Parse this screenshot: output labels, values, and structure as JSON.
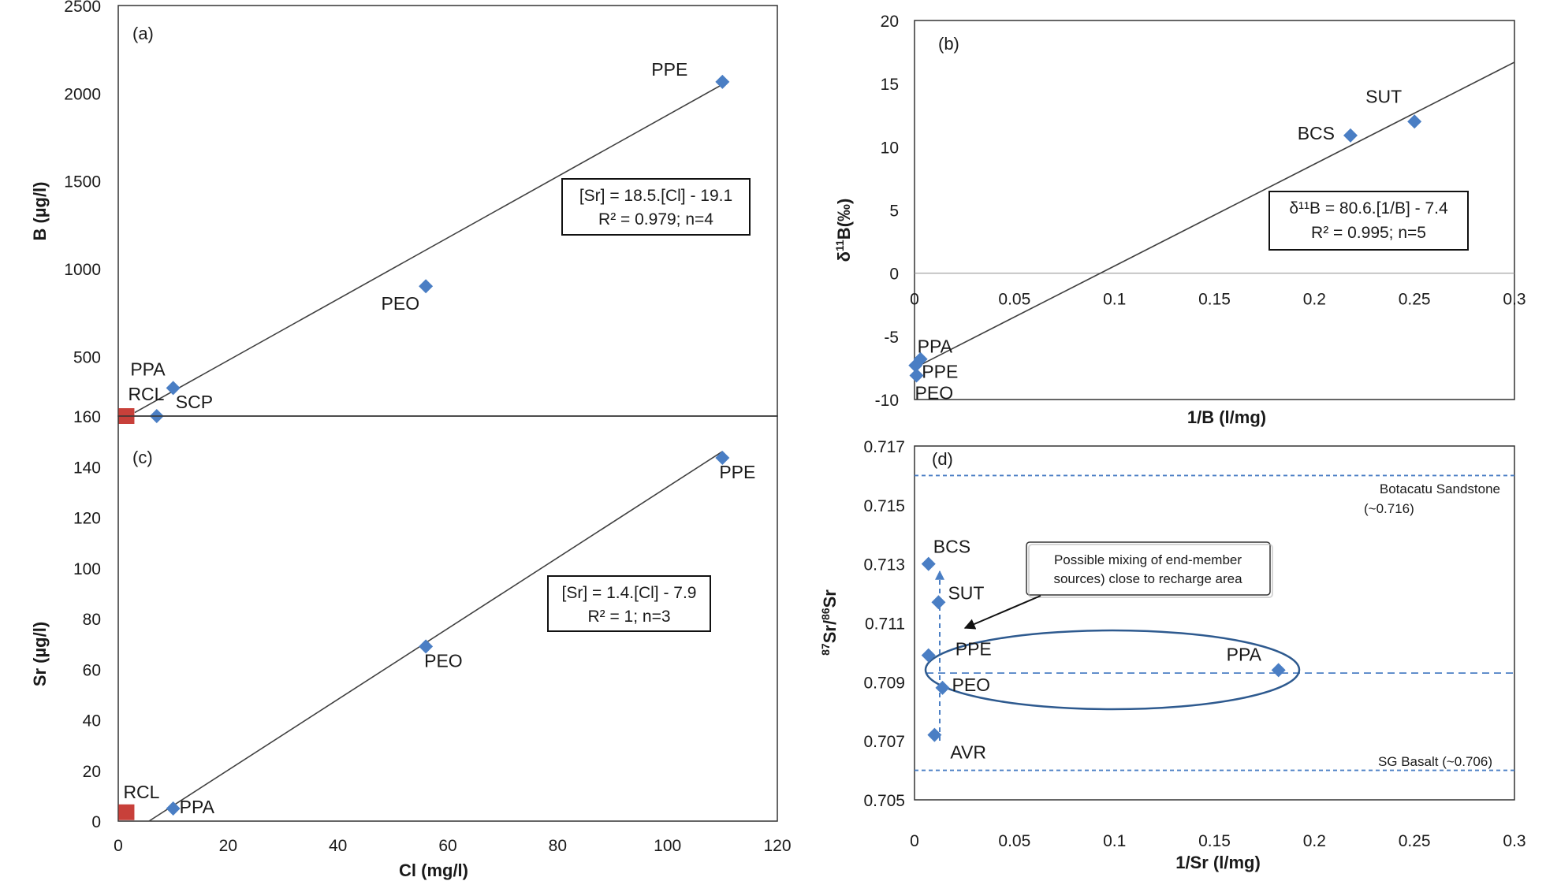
{
  "chart_data": [
    {
      "panel": "(a)",
      "type": "scatter",
      "xlabel": "",
      "ylabel": "B (µg/l)",
      "xlim": [
        0,
        120
      ],
      "ylim": [
        160,
        2500
      ],
      "yticks": [
        "160",
        "500",
        "1000",
        "1500",
        "2000",
        "2500"
      ],
      "points": [
        {
          "label": "PPE",
          "x": 110,
          "y": 2065,
          "marker": "diamond"
        },
        {
          "label": "PEO",
          "x": 56,
          "y": 900,
          "marker": "diamond"
        },
        {
          "label": "PPA",
          "x": 10,
          "y": 320,
          "marker": "diamond"
        },
        {
          "label": "SCP",
          "x": 7,
          "y": 160,
          "marker": "diamond"
        },
        {
          "label": "RCL",
          "x": 1.5,
          "y": 160,
          "marker": "square"
        }
      ],
      "fit_line": {
        "x": [
          3,
          110
        ],
        "y": [
          180,
          2050
        ]
      },
      "equation": [
        "[Sr] = 18.5.[Cl] - 19.1",
        "R² = 0.979; n=4"
      ]
    },
    {
      "panel": "(b)",
      "type": "scatter",
      "xlabel": "1/B (l/mg)",
      "ylabel": "δ11B(‰)",
      "xlim": [
        0,
        0.3
      ],
      "ylim": [
        -10,
        20
      ],
      "xticks": [
        "0",
        "0.05",
        "0.1",
        "0.15",
        "0.2",
        "0.25",
        "0.3"
      ],
      "yticks": [
        "-10",
        "-5",
        "0",
        "5",
        "10",
        "15",
        "20"
      ],
      "points": [
        {
          "label": "SUT",
          "x": 0.25,
          "y": 12,
          "marker": "diamond"
        },
        {
          "label": "BCS",
          "x": 0.218,
          "y": 10.9,
          "marker": "diamond"
        },
        {
          "label": "PPA",
          "x": 0.003,
          "y": -6.8,
          "marker": "diamond"
        },
        {
          "label": "PPE",
          "x": 0.0005,
          "y": -7.3,
          "marker": "diamond"
        },
        {
          "label": "PEO",
          "x": 0.001,
          "y": -8.1,
          "marker": "diamond"
        }
      ],
      "fit_line": {
        "x": [
          0,
          0.3
        ],
        "y": [
          -7.5,
          16.7
        ]
      },
      "equation": [
        "δ¹¹B = 80.6.[1/B] - 7.4",
        "R² = 0.995; n=5"
      ]
    },
    {
      "panel": "(c)",
      "type": "scatter",
      "xlabel": "Cl (mg/l)",
      "ylabel": "Sr (µg/l)",
      "xlim": [
        0,
        120
      ],
      "ylim": [
        0,
        160
      ],
      "xticks": [
        "0",
        "20",
        "40",
        "60",
        "80",
        "100",
        "120"
      ],
      "yticks": [
        "0",
        "20",
        "40",
        "60",
        "80",
        "100",
        "120",
        "140"
      ],
      "points": [
        {
          "label": "PPE",
          "x": 110,
          "y": 143.5,
          "marker": "diamond"
        },
        {
          "label": "PEO",
          "x": 56,
          "y": 69,
          "marker": "diamond"
        },
        {
          "label": "PPA",
          "x": 10,
          "y": 5,
          "marker": "diamond"
        },
        {
          "label": "RCL",
          "x": 1.5,
          "y": 3.5,
          "marker": "square"
        }
      ],
      "fit_line": {
        "x": [
          5.6,
          110
        ],
        "y": [
          0,
          146
        ]
      },
      "equation": [
        "[Sr] = 1.4.[Cl] - 7.9",
        "R² = 1; n=3"
      ]
    },
    {
      "panel": "(d)",
      "type": "scatter",
      "xlabel": "1/Sr (l/mg)",
      "ylabel": "87Sr/86Sr",
      "xlim": [
        0,
        0.3
      ],
      "ylim": [
        0.705,
        0.717
      ],
      "xticks": [
        "0",
        "0.05",
        "0.1",
        "0.15",
        "0.2",
        "0.25",
        "0.3"
      ],
      "yticks": [
        "0.705",
        "0.707",
        "0.709",
        "0.711",
        "0.713",
        "0.715",
        "0.717"
      ],
      "points": [
        {
          "label": "BCS",
          "x": 0.007,
          "y": 0.713,
          "marker": "diamond"
        },
        {
          "label": "SUT",
          "x": 0.012,
          "y": 0.7117,
          "marker": "diamond"
        },
        {
          "label": "PPE",
          "x": 0.007,
          "y": 0.7099,
          "marker": "diamond"
        },
        {
          "label": "PEO",
          "x": 0.014,
          "y": 0.7088,
          "marker": "diamond"
        },
        {
          "label": "AVR",
          "x": 0.01,
          "y": 0.7072,
          "marker": "diamond"
        },
        {
          "label": "PPA",
          "x": 0.182,
          "y": 0.7094,
          "marker": "diamond"
        }
      ],
      "reference_lines": [
        {
          "label": "Botacatu Sandstone",
          "label2": "(~0.716)",
          "y": 0.716
        },
        {
          "label": "SG Basalt (~0.706)",
          "y": 0.706
        },
        {
          "y": 0.7093
        }
      ],
      "annotation": [
        "Possible mixing of end-member",
        "sources) close to recharge area"
      ]
    }
  ],
  "colors": {
    "diamond": "#4a7ec4",
    "square": "#c8403a",
    "dashed": "#4a7ec4",
    "line": "#404040",
    "ellipse": "#2e5a8f"
  }
}
